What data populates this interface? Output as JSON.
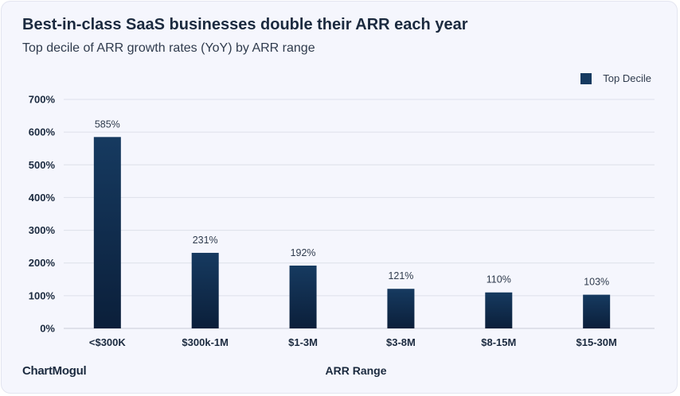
{
  "title": "Best-in-class SaaS businesses double their ARR each year",
  "subtitle": "Top decile of ARR growth rates (YoY) by ARR range",
  "brand": "ChartMogul",
  "colors": {
    "bar_top": "#163a60",
    "bar_bottom": "#0b1f3a",
    "grid": "#dde0ea",
    "background": "#f5f6fd"
  },
  "chart_data": {
    "type": "bar",
    "categories": [
      "<$300K",
      "$300k-1M",
      "$1-3M",
      "$3-8M",
      "$8-15M",
      "$15-30M"
    ],
    "series": [
      {
        "name": "Top Decile",
        "values": [
          585,
          231,
          192,
          121,
          110,
          103
        ]
      }
    ],
    "data_labels": [
      "585%",
      "231%",
      "192%",
      "121%",
      "110%",
      "103%"
    ],
    "xlabel": "ARR Range",
    "ylabel": "",
    "ylim": [
      0,
      700
    ],
    "yticks": [
      0,
      100,
      200,
      300,
      400,
      500,
      600,
      700
    ],
    "ytick_labels": [
      "0%",
      "100%",
      "200%",
      "300%",
      "400%",
      "500%",
      "600%",
      "700%"
    ],
    "grid": true,
    "legend_position": "top-right"
  }
}
